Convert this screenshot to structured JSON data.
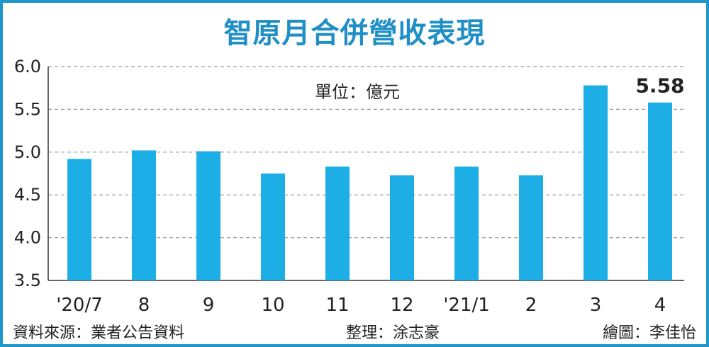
{
  "chart_data": {
    "type": "bar",
    "title": "智原月合併營收表現",
    "unit": "單位：億元",
    "categories": [
      "'20/7",
      "8",
      "9",
      "10",
      "11",
      "12",
      "'21/1",
      "2",
      "3",
      "4"
    ],
    "values": [
      4.92,
      5.02,
      5.01,
      4.75,
      4.83,
      4.73,
      4.83,
      4.73,
      5.78,
      5.58
    ],
    "data_labels": [
      {
        "index": 9,
        "text": "5.58"
      }
    ],
    "yticks": [
      "3.5",
      "4.0",
      "4.5",
      "5.0",
      "5.5",
      "6.0"
    ],
    "ylim": [
      3.5,
      6.0
    ],
    "grid": true,
    "bar_color": "#1eaee6",
    "title_color": "#1f8fc6"
  },
  "footer": {
    "source": "資料來源：業者公告資料",
    "editor": "整理：涂志豪",
    "graphic": "繪圖：李佳怡"
  }
}
